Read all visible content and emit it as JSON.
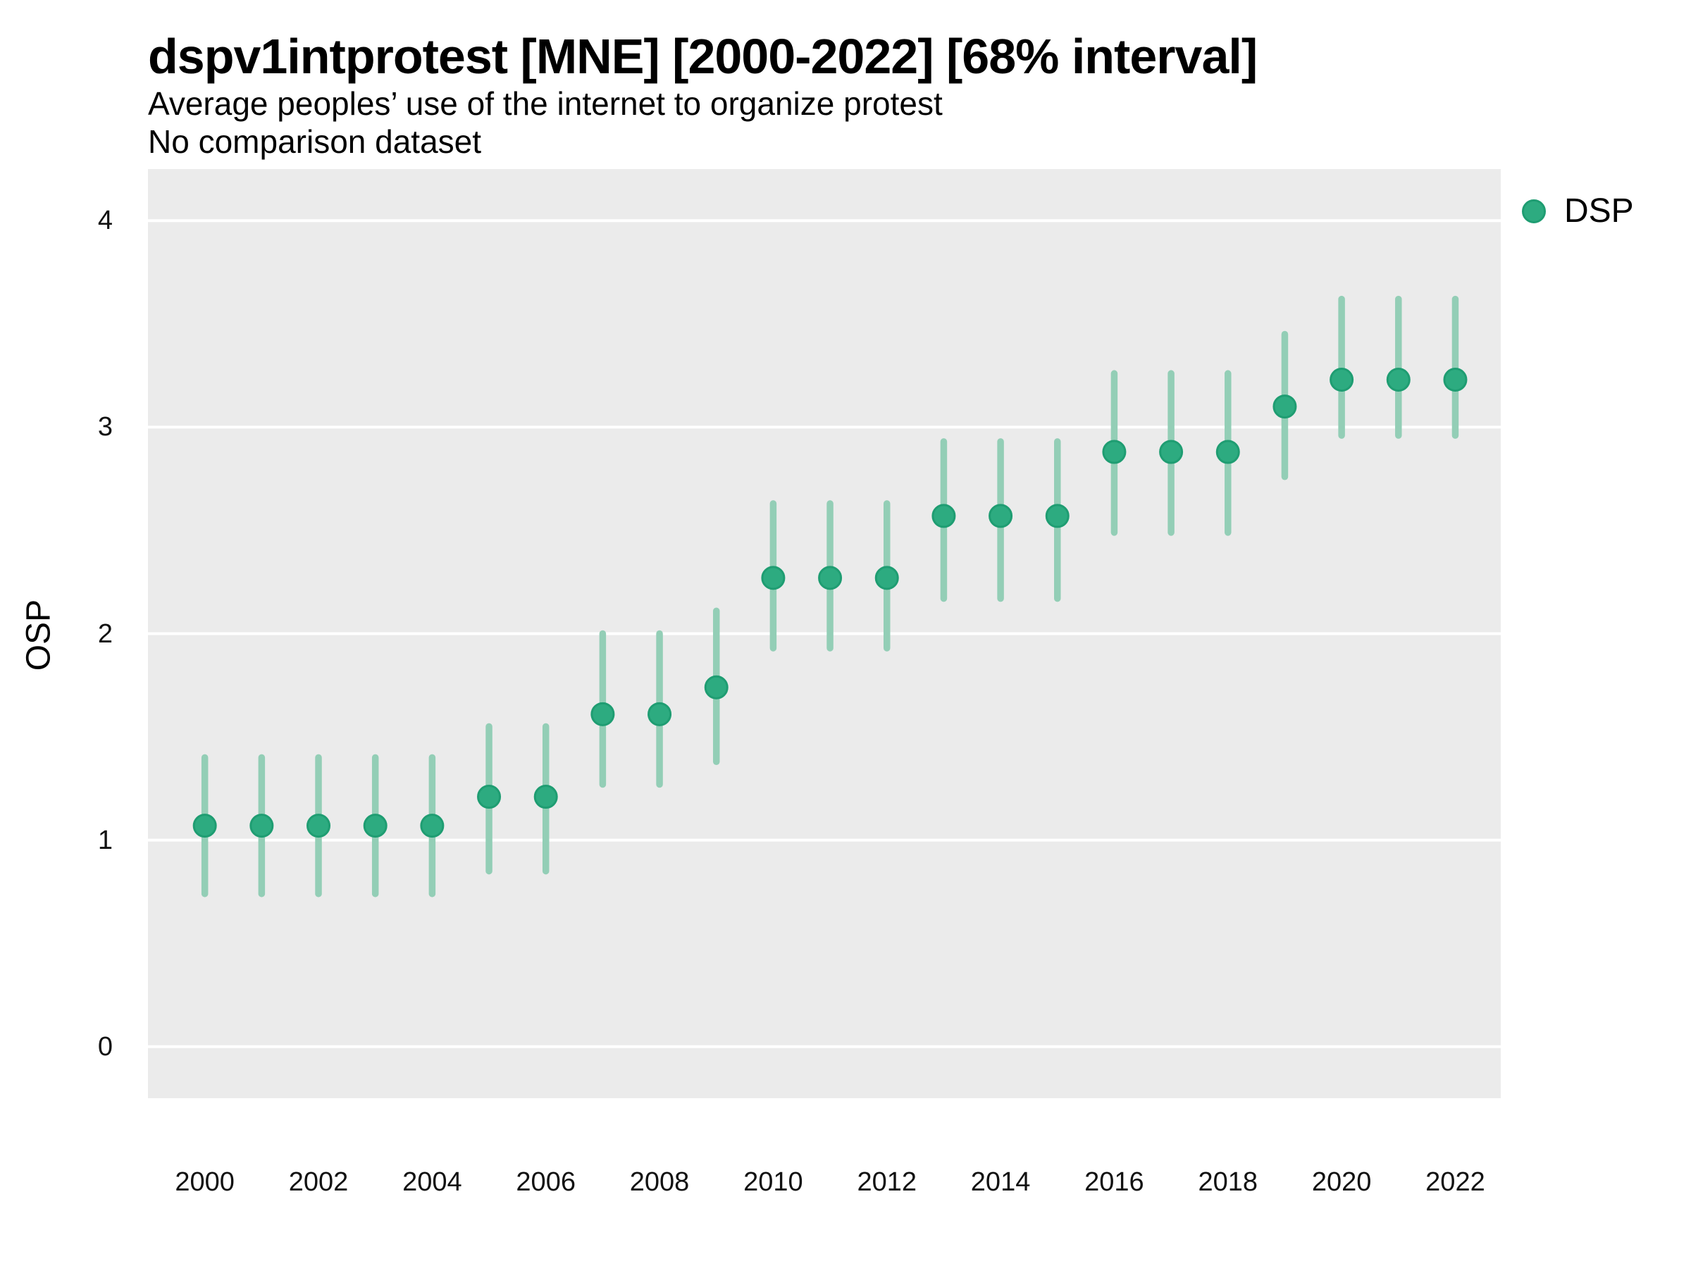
{
  "chart_data": {
    "type": "scatter",
    "subtype": "pointrange",
    "title": "dspv1intprotest [MNE] [2000-2022] [68% interval]",
    "subtitle": "Average peoples’ use of the internet to organize protest",
    "note": "No comparison dataset",
    "xlabel": "",
    "ylabel": "OSP",
    "interval_label": "68% interval",
    "legend_position": "right",
    "grid": "horizontal white major gridlines on grey panel",
    "x": [
      2000,
      2001,
      2002,
      2003,
      2004,
      2005,
      2006,
      2007,
      2008,
      2009,
      2010,
      2011,
      2012,
      2013,
      2014,
      2015,
      2016,
      2017,
      2018,
      2019,
      2020,
      2021,
      2022
    ],
    "series": [
      {
        "name": "DSP",
        "values": [
          1.07,
          1.07,
          1.07,
          1.07,
          1.07,
          1.21,
          1.21,
          1.61,
          1.61,
          1.74,
          2.27,
          2.27,
          2.27,
          2.57,
          2.57,
          2.57,
          2.88,
          2.88,
          2.88,
          3.1,
          3.23,
          3.23,
          3.23
        ],
        "lower": [
          0.74,
          0.74,
          0.74,
          0.74,
          0.74,
          0.85,
          0.85,
          1.27,
          1.27,
          1.38,
          1.93,
          1.93,
          1.93,
          2.17,
          2.17,
          2.17,
          2.49,
          2.49,
          2.49,
          2.76,
          2.96,
          2.96,
          2.96
        ],
        "upper": [
          1.4,
          1.4,
          1.4,
          1.4,
          1.4,
          1.55,
          1.55,
          2.0,
          2.0,
          2.11,
          2.63,
          2.63,
          2.63,
          2.93,
          2.93,
          2.93,
          3.26,
          3.26,
          3.26,
          3.45,
          3.62,
          3.62,
          3.62
        ]
      }
    ],
    "x_ticks": [
      2000,
      2002,
      2004,
      2006,
      2008,
      2010,
      2012,
      2014,
      2016,
      2018,
      2020,
      2022
    ],
    "y_ticks": [
      0,
      1,
      2,
      3,
      4
    ],
    "xlim": [
      1999.0,
      2022.8
    ],
    "ylim": [
      -0.25,
      4.25
    ]
  },
  "colors": {
    "point": "#2dab80",
    "point_border": "#1f9d72",
    "interval": "#93ceb6",
    "panel_background": "#ebebeb",
    "gridline": "#ffffff",
    "text": "#000000"
  }
}
